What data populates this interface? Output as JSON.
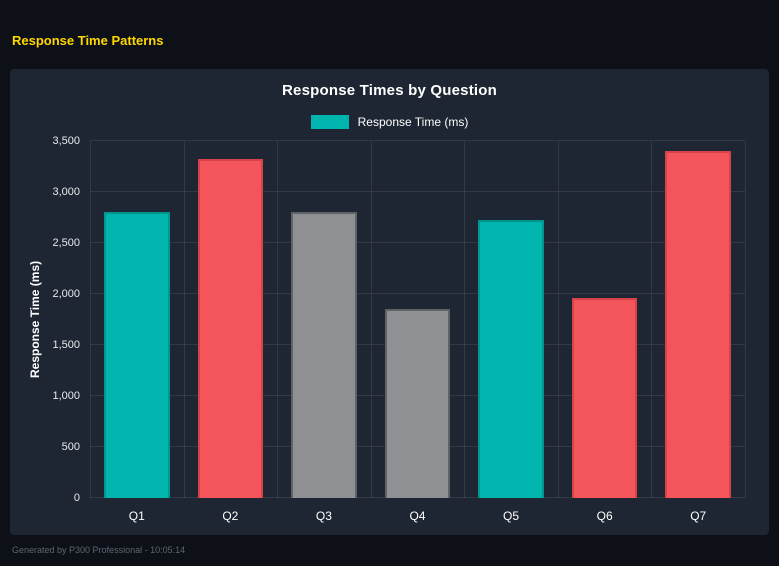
{
  "page": {
    "title": "Response Time Patterns",
    "footer": "Generated by P300 Professional - 10:05:14"
  },
  "colors": {
    "page_bg": "#0d1016",
    "card_bg": "#1e2533",
    "accent_yellow": "#ffd700",
    "teal": "#00b5ad",
    "red": "#f4555a",
    "gray": "#8e9093",
    "grid": "rgba(255,255,255,0.09)",
    "text": "#ffffff"
  },
  "chart_data": {
    "type": "bar",
    "title": "Response Times by Question",
    "legend": [
      {
        "label": "Response Time (ms)",
        "color": "#00b5ad"
      }
    ],
    "legend_position": "top",
    "categories": [
      "Q1",
      "Q2",
      "Q3",
      "Q4",
      "Q5",
      "Q6",
      "Q7"
    ],
    "values": [
      2800,
      3320,
      2800,
      1850,
      2730,
      1960,
      3400
    ],
    "bar_colors": [
      "#00b5ad",
      "#f4555a",
      "#8e9093",
      "#8e9093",
      "#00b5ad",
      "#f4555a",
      "#f4555a"
    ],
    "bar_border_colors": [
      "#00958f",
      "#d8434a",
      "#5f6366",
      "#5f6366",
      "#00958f",
      "#d8434a",
      "#d8434a"
    ],
    "xlabel": "",
    "ylabel": "Response Time (ms)",
    "ylim": [
      0,
      3500
    ],
    "ytick_labels": [
      "0",
      "500",
      "1,000",
      "1,500",
      "2,000",
      "2,500",
      "3,000",
      "3,500"
    ],
    "grid": true
  }
}
